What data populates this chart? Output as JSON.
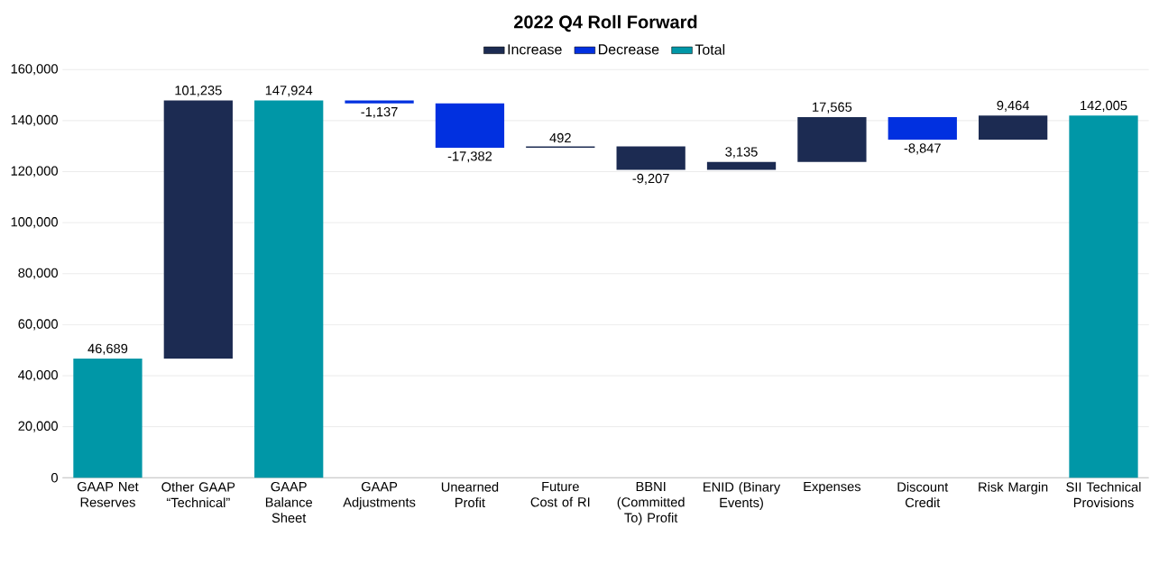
{
  "chart_data": {
    "type": "bar",
    "title": "2022 Q4 Roll Forward",
    "categories": [
      "GAAP Net Reserves",
      "Other GAAP “Technical”",
      "GAAP Balance Sheet",
      "GAAP Adjustments",
      "Unearned Profit",
      "Future Cost of RI",
      "BBNI (Committed To) Profit",
      "ENID (Binary Events)",
      "Expenses",
      "Discount Credit",
      "Risk Margin",
      "SII Technical Provisions"
    ],
    "series": [
      {
        "name": "Increase",
        "color": "#1c2b52",
        "base": [
          null,
          46689,
          null,
          null,
          null,
          129405,
          129897,
          120690,
          123825,
          null,
          132543,
          null
        ],
        "values": [
          null,
          101235,
          null,
          null,
          null,
          492,
          -9207,
          3135,
          17565,
          null,
          9464,
          null
        ],
        "value_labels": [
          null,
          "101,235",
          null,
          null,
          null,
          "492",
          "-9,207",
          "3,135",
          "17,565",
          null,
          "9,464",
          null
        ]
      },
      {
        "name": "Decrease",
        "color": "#0130e0",
        "base": [
          null,
          null,
          null,
          147924,
          146787,
          null,
          null,
          null,
          null,
          141390,
          null,
          null
        ],
        "values": [
          null,
          null,
          null,
          -1137,
          -17382,
          null,
          null,
          null,
          null,
          -8847,
          null,
          null
        ],
        "value_labels": [
          null,
          null,
          null,
          "-1,137",
          "-17,382",
          null,
          null,
          null,
          null,
          "-8,847",
          null,
          null
        ]
      },
      {
        "name": "Total",
        "color": "#0097a7",
        "values": [
          46689,
          null,
          147924,
          null,
          null,
          null,
          null,
          null,
          null,
          null,
          null,
          142005
        ],
        "value_labels": [
          "46,689",
          null,
          "147,924",
          null,
          null,
          null,
          null,
          null,
          null,
          null,
          null,
          "142,005"
        ]
      }
    ],
    "ylim": [
      0,
      160000
    ],
    "yticks": [
      0,
      {
        "value": 20000,
        "label": "20,000"
      },
      {
        "value": 40000,
        "label": "40,000"
      },
      {
        "value": 60000,
        "label": "60,000"
      },
      {
        "value": 80000,
        "label": "80,000"
      },
      {
        "value": 100000,
        "label": "100,000"
      },
      {
        "value": 120000,
        "label": "120,000"
      },
      {
        "value": 140000,
        "label": "140,000"
      },
      {
        "value": 160000,
        "label": "160,000"
      }
    ],
    "grid": "y",
    "legend": "top"
  }
}
